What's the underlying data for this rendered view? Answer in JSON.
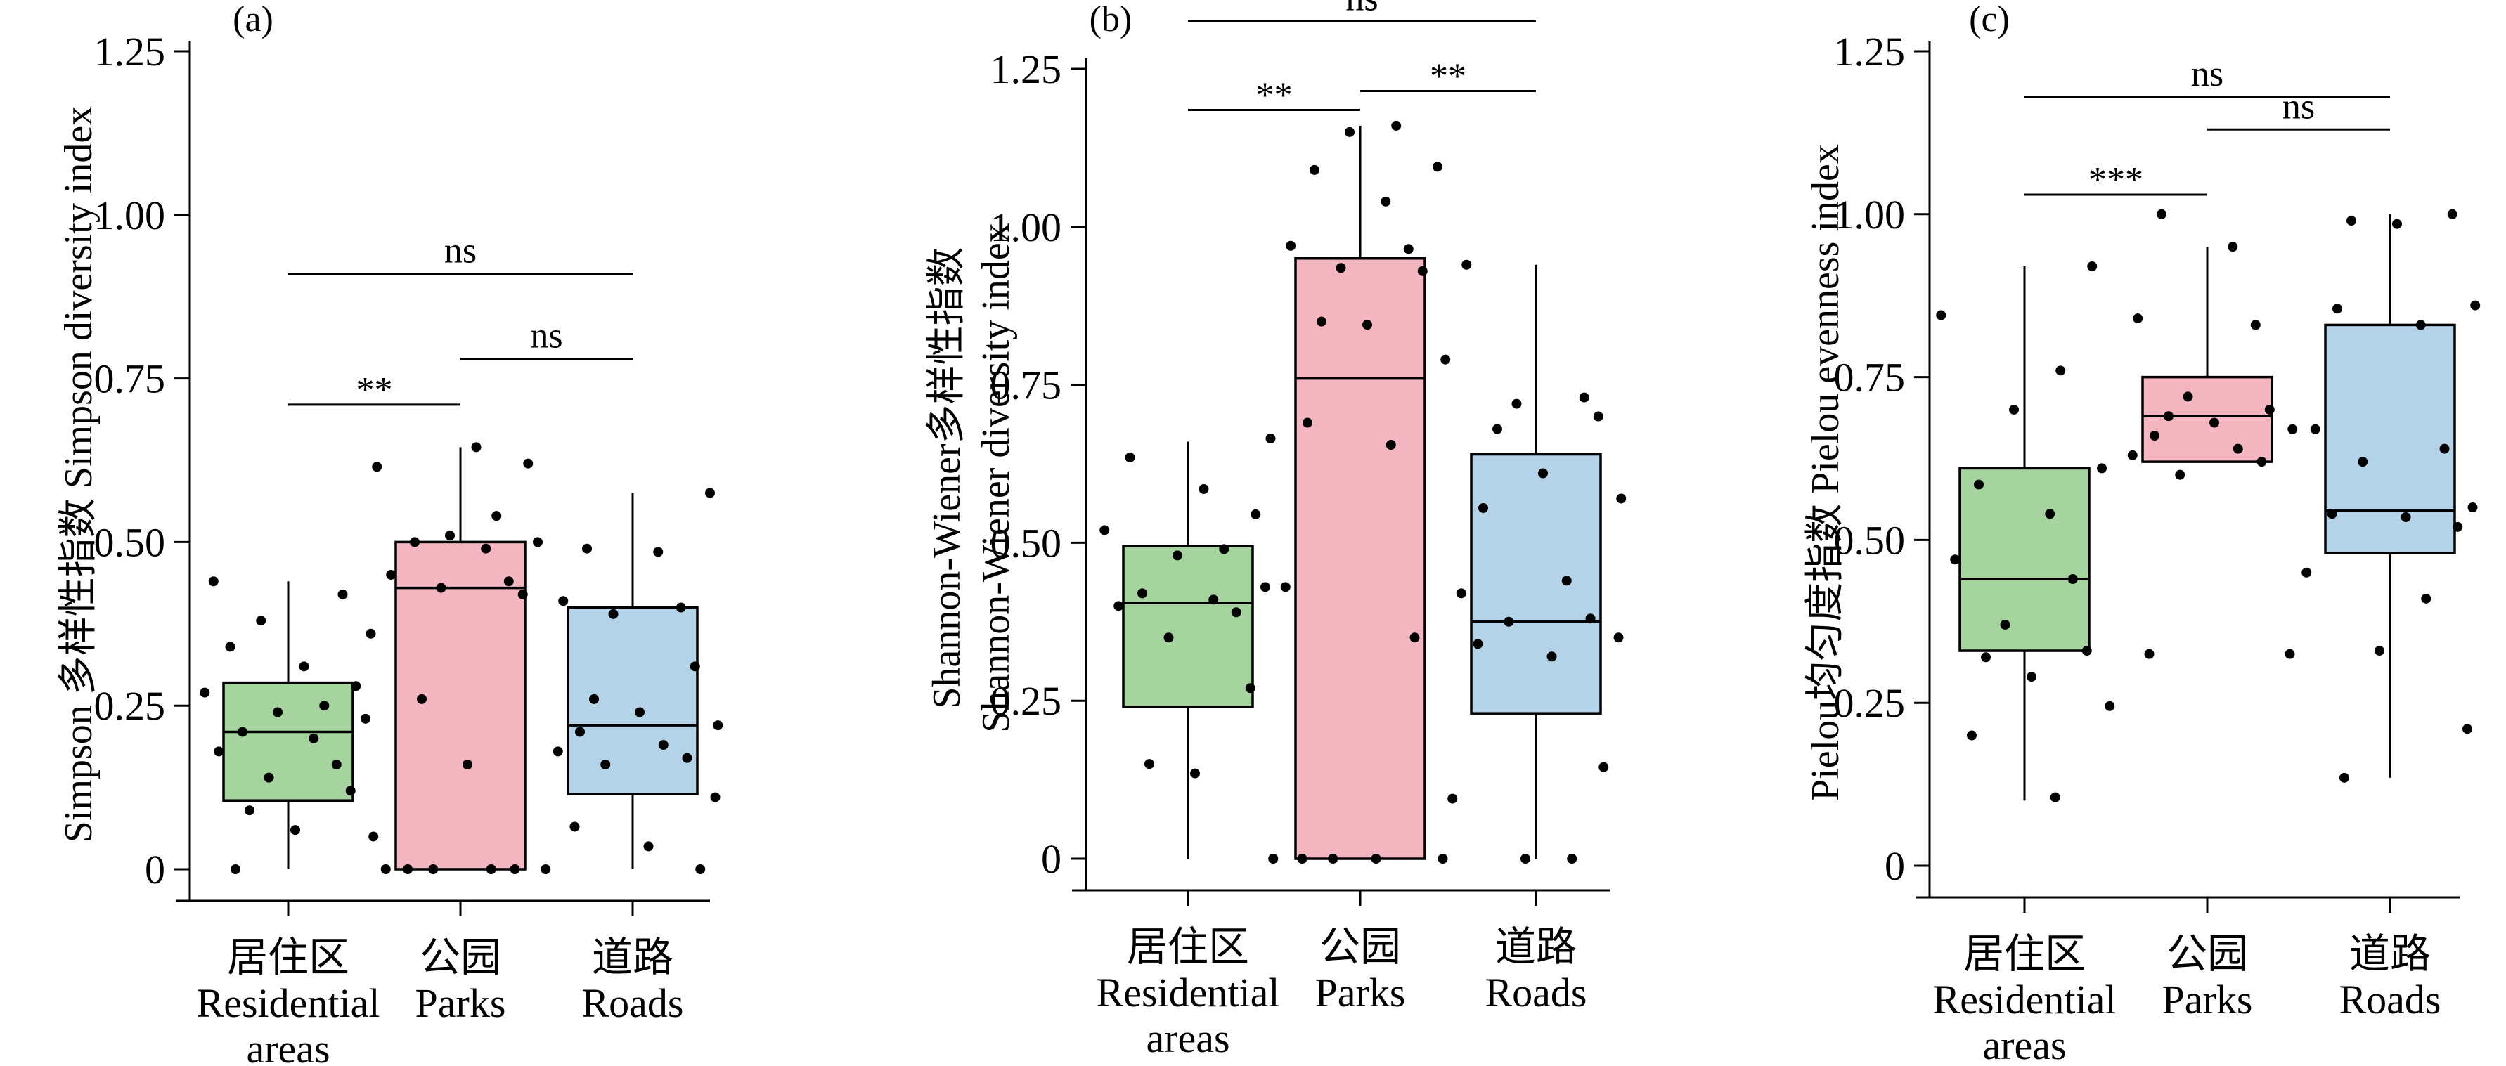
{
  "chart_data": [
    {
      "type": "box",
      "panel_label": "(a)",
      "ylabel_cn": "Simpson 多样性指数",
      "ylabel_en": "Simpson diversity index",
      "ylim": [
        0,
        1.25
      ],
      "yticks": [
        "0",
        "0.25",
        "0.50",
        "0.75",
        "1.00",
        "1.25"
      ],
      "categories": [
        {
          "cn": "居住区",
          "en": [
            "Residential",
            "areas"
          ],
          "color": "#a6d49f"
        },
        {
          "cn": "公园",
          "en": [
            "Parks"
          ],
          "color": "#f4b6c0"
        },
        {
          "cn": "道路",
          "en": [
            "Roads"
          ],
          "color": "#b4d3e8"
        }
      ],
      "boxes": [
        {
          "min": 0.0,
          "q1": 0.105,
          "median": 0.21,
          "q3": 0.285,
          "max": 0.44
        },
        {
          "min": 0.0,
          "q1": 0.0,
          "median": 0.43,
          "q3": 0.5,
          "max": 0.645
        },
        {
          "min": 0.0,
          "q1": 0.115,
          "median": 0.22,
          "q3": 0.4,
          "max": 0.575
        }
      ],
      "points": [
        [
          0.44,
          0.42,
          0.38,
          0.36,
          0.34,
          0.31,
          0.28,
          0.27,
          0.25,
          0.24,
          0.23,
          0.21,
          0.2,
          0.18,
          0.16,
          0.14,
          0.12,
          0.09,
          0.06,
          0.05,
          0.0
        ],
        [
          0.645,
          0.62,
          0.615,
          0.54,
          0.51,
          0.5,
          0.5,
          0.49,
          0.45,
          0.44,
          0.43,
          0.42,
          0.26,
          0.16,
          0.0,
          0.0,
          0.0,
          0.0,
          0.0,
          0.0
        ],
        [
          0.575,
          0.49,
          0.485,
          0.41,
          0.4,
          0.39,
          0.31,
          0.26,
          0.24,
          0.22,
          0.21,
          0.19,
          0.18,
          0.17,
          0.16,
          0.11,
          0.065,
          0.035,
          0.0
        ]
      ],
      "significance": [
        {
          "from": 0,
          "to": 1,
          "label": "**",
          "y": 0.71
        },
        {
          "from": 1,
          "to": 2,
          "label": "ns",
          "y": 0.78
        },
        {
          "from": 0,
          "to": 2,
          "label": "ns",
          "y": 0.91
        }
      ]
    },
    {
      "type": "box",
      "panel_label": "(b)",
      "ylabel_cn": "Shannon-Wiener多样性指数",
      "ylabel_en": "Shannon-Wiener diversity index",
      "ylim": [
        0,
        1.25
      ],
      "yticks": [
        "0",
        "0.25",
        "0.50",
        "0.75",
        "1.00",
        "1.25"
      ],
      "categories": [
        {
          "cn": "居住区",
          "en": [
            "Residential",
            "areas"
          ],
          "color": "#a6d49f"
        },
        {
          "cn": "公园",
          "en": [
            "Parks"
          ],
          "color": "#f4b6c0"
        },
        {
          "cn": "道路",
          "en": [
            "Roads"
          ],
          "color": "#b4d3e8"
        }
      ],
      "boxes": [
        {
          "min": 0.0,
          "q1": 0.24,
          "median": 0.405,
          "q3": 0.495,
          "max": 0.66
        },
        {
          "min": 0.0,
          "q1": 0.0,
          "median": 0.76,
          "q3": 0.95,
          "max": 1.16
        },
        {
          "min": 0.0,
          "q1": 0.23,
          "median": 0.375,
          "q3": 0.64,
          "max": 0.94
        }
      ],
      "points": [
        [
          0.665,
          0.635,
          0.585,
          0.545,
          0.52,
          0.49,
          0.48,
          0.43,
          0.42,
          0.41,
          0.4,
          0.39,
          0.35,
          0.27,
          0.15,
          0.135,
          0.0
        ],
        [
          1.16,
          1.15,
          1.095,
          1.09,
          1.04,
          0.97,
          0.965,
          0.935,
          0.93,
          0.85,
          0.845,
          0.79,
          0.69,
          0.655,
          0.43,
          0.35,
          0.0,
          0.0,
          0.0,
          0.0
        ],
        [
          0.94,
          0.73,
          0.72,
          0.7,
          0.68,
          0.61,
          0.57,
          0.555,
          0.44,
          0.42,
          0.38,
          0.375,
          0.35,
          0.34,
          0.32,
          0.145,
          0.095,
          0.0,
          0.0
        ]
      ],
      "significance": [
        {
          "from": 0,
          "to": 1,
          "label": "**",
          "y": 1.185
        },
        {
          "from": 1,
          "to": 2,
          "label": "**",
          "y": 1.215
        },
        {
          "from": 0,
          "to": 2,
          "label": "ns",
          "y": 1.325
        }
      ]
    },
    {
      "type": "box",
      "panel_label": "(c)",
      "ylabel_cn": "Pielou均匀度指数",
      "ylabel_en": "Pielou evenness index",
      "ylim": [
        0,
        1.25
      ],
      "yticks": [
        "0",
        "0.25",
        "0.50",
        "0.75",
        "1.00",
        "1.25"
      ],
      "categories": [
        {
          "cn": "居住区",
          "en": [
            "Residential",
            "areas"
          ],
          "color": "#a6d49f"
        },
        {
          "cn": "公园",
          "en": [
            "Parks"
          ],
          "color": "#f4b6c0"
        },
        {
          "cn": "道路",
          "en": [
            "Roads"
          ],
          "color": "#b4d3e8"
        }
      ],
      "boxes": [
        {
          "min": 0.1,
          "q1": 0.33,
          "median": 0.44,
          "q3": 0.61,
          "max": 0.92
        },
        {
          "min": 0.62,
          "q1": 0.62,
          "median": 0.69,
          "q3": 0.75,
          "max": 0.95
        },
        {
          "min": 0.135,
          "q1": 0.48,
          "median": 0.545,
          "q3": 0.83,
          "max": 1.0
        }
      ],
      "points": [
        [
          0.92,
          0.845,
          0.76,
          0.7,
          0.61,
          0.585,
          0.54,
          0.47,
          0.44,
          0.37,
          0.33,
          0.32,
          0.29,
          0.245,
          0.2,
          0.105
        ],
        [
          1.0,
          0.95,
          0.84,
          0.83,
          0.72,
          0.7,
          0.69,
          0.68,
          0.67,
          0.66,
          0.64,
          0.63,
          0.62,
          0.6,
          0.325,
          0.325
        ],
        [
          1.0,
          0.99,
          0.985,
          0.86,
          0.855,
          0.83,
          0.67,
          0.64,
          0.62,
          0.55,
          0.54,
          0.535,
          0.52,
          0.45,
          0.41,
          0.33,
          0.21,
          0.135
        ]
      ],
      "significance": [
        {
          "from": 0,
          "to": 1,
          "label": "***",
          "y": 1.03
        },
        {
          "from": 1,
          "to": 2,
          "label": "ns",
          "y": 1.13
        },
        {
          "from": 0,
          "to": 2,
          "label": "ns",
          "y": 1.18
        }
      ]
    }
  ]
}
